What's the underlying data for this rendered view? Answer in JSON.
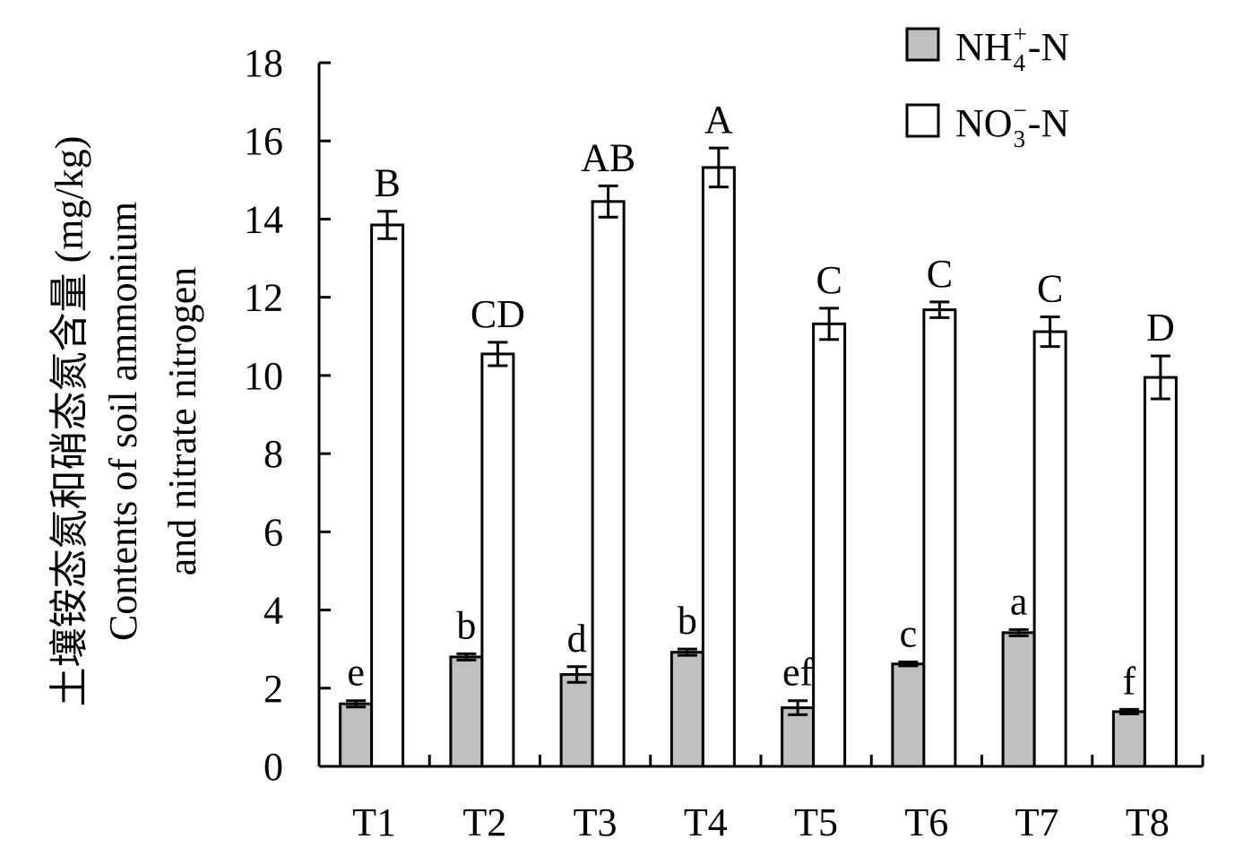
{
  "chart_data": {
    "type": "bar",
    "ylabel_lines": [
      "土壤铵态氮和硝态氮含量 (mg/kg)",
      "Contents of soil ammonium",
      "and nitrate nitrogen"
    ],
    "xlabel": "",
    "ylim": [
      0,
      18
    ],
    "yticks": [
      0,
      2,
      4,
      6,
      8,
      10,
      12,
      14,
      16,
      18
    ],
    "categories": [
      "T1",
      "T2",
      "T3",
      "T4",
      "T5",
      "T6",
      "T7",
      "T8"
    ],
    "series": [
      {
        "name": "NH4+-N",
        "legend": {
          "base": "NH",
          "sub": "4",
          "sup": "+",
          "suffix": "-N"
        },
        "color": "#c0c0c0",
        "values": [
          1.6,
          2.8,
          2.35,
          2.92,
          1.5,
          2.62,
          3.42,
          1.4
        ],
        "errors": [
          0.08,
          0.08,
          0.2,
          0.08,
          0.18,
          0.05,
          0.08,
          0.06
        ],
        "letters": [
          "e",
          "b",
          "d",
          "b",
          "ef",
          "c",
          "a",
          "f"
        ]
      },
      {
        "name": "NO3--N",
        "legend": {
          "base": "NO",
          "sub": "3",
          "sup": "−",
          "suffix": "-N"
        },
        "color": "#ffffff",
        "values": [
          13.85,
          10.55,
          14.45,
          15.32,
          11.32,
          11.68,
          11.12,
          9.95
        ],
        "errors": [
          0.35,
          0.3,
          0.4,
          0.5,
          0.4,
          0.2,
          0.38,
          0.55
        ],
        "letters": [
          "B",
          "CD",
          "AB",
          "A",
          "C",
          "C",
          "C",
          "D"
        ]
      }
    ],
    "legend_position": "top-right",
    "grid": false
  }
}
